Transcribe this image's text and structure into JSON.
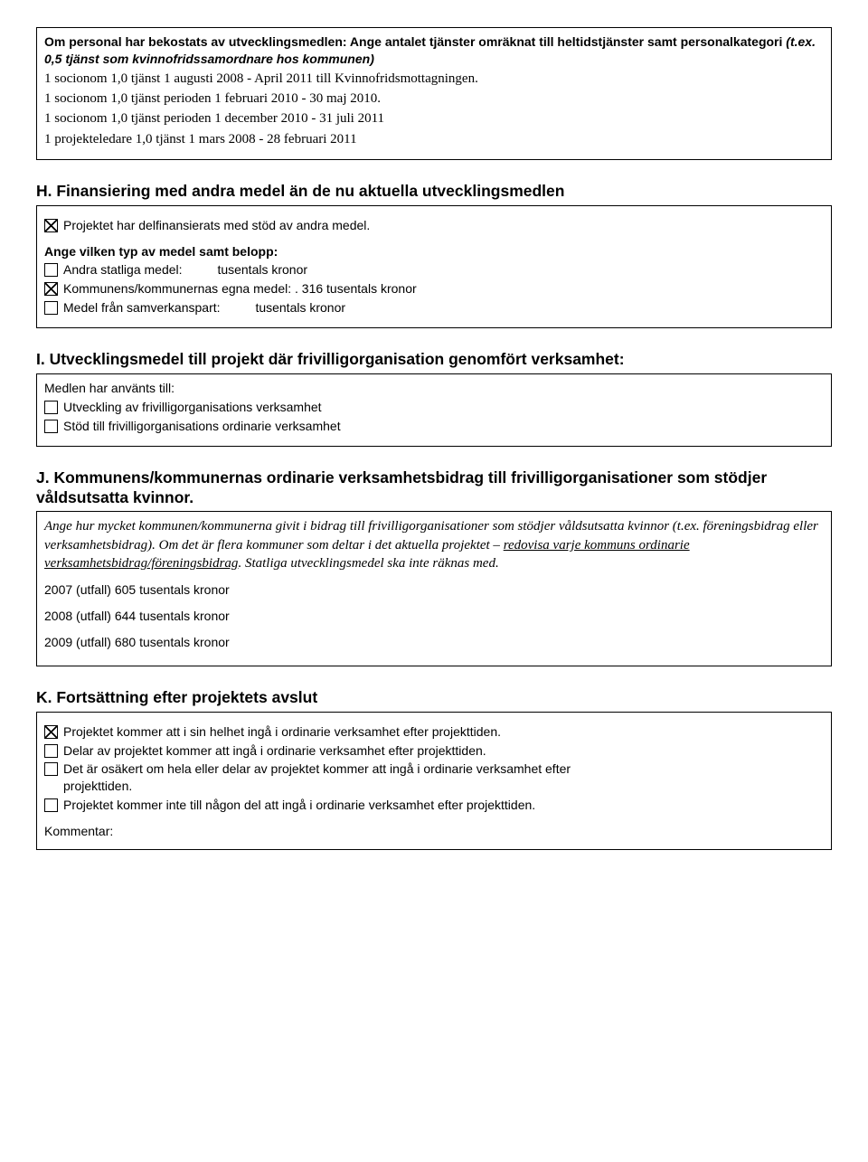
{
  "boxPersonal": {
    "intro_bold": "Om personal har bekostats av utvecklingsmedlen: Ange antalet tjänster omräknat till heltidstjänster samt personalkategori ",
    "intro_italic": "(t.ex. 0,5 tjänst som kvinnofridssamordnare hos kommunen)",
    "lines": [
      "1 socionom 1,0 tjänst 1 augusti 2008 - April 2011 till Kvinnofridsmottagningen.",
      "1 socionom 1,0 tjänst perioden 1 februari 2010 - 30 maj 2010.",
      "1 socionom 1,0 tjänst perioden 1 december 2010 - 31 juli 2011",
      "1 projekteledare 1,0 tjänst 1 mars 2008 - 28 februari 2011"
    ]
  },
  "sectionH": {
    "heading": "H. Finansiering med andra medel än de nu aktuella utvecklingsmedlen",
    "chk1_label": "Projektet har delfinansierats med stöd av andra medel.",
    "sub_heading": "Ange vilken typ av medel samt belopp:",
    "row1_label": "Andra statliga medel:",
    "row1_value": "tusentals kronor",
    "row2_label": "Kommunens/kommunernas egna medel: . 316 tusentals kronor",
    "row3_label": "Medel från samverkanspart:",
    "row3_value": "tusentals kronor"
  },
  "sectionI": {
    "heading": "I. Utvecklingsmedel till projekt där frivilligorganisation genomfört verksamhet:",
    "intro": "Medlen har använts till:",
    "opt1": "Utveckling av frivilligorganisations verksamhet",
    "opt2": "Stöd till frivilligorganisations ordinarie verksamhet"
  },
  "sectionJ": {
    "heading": "J. Kommunens/kommunernas ordinarie verksamhetsbidrag till frivilligorganisationer som stödjer våldsutsatta kvinnor.",
    "italic_part1": "Ange hur mycket kommunen/kommunerna givit i bidrag till frivilligorganisationer som stödjer våldsutsatta kvinnor (t.ex. föreningsbidrag eller verksamhetsbidrag). Om det är flera kommuner som deltar i det aktuella projektet – ",
    "italic_underline": "redovisa varje kommuns ordinarie verksamhetsbidrag/föreningsbidrag",
    "italic_part2": ". Statliga utvecklingsmedel ska inte räknas med.",
    "y2007": "2007 (utfall) 605 tusentals kronor",
    "y2008": "2008 (utfall) 644 tusentals kronor",
    "y2009": "2009 (utfall) 680 tusentals kronor"
  },
  "sectionK": {
    "heading": "K. Fortsättning efter projektets avslut",
    "opt1": "Projektet kommer att i sin helhet ingå i ordinarie verksamhet efter projekttiden.",
    "opt2": "Delar av projektet kommer att ingå i ordinarie verksamhet efter projekttiden.",
    "opt3a": "Det är osäkert om hela eller delar av projektet kommer att ingå i ordinarie verksamhet efter",
    "opt3b": "projekttiden.",
    "opt4": "Projektet kommer inte till någon del att ingå i ordinarie verksamhet efter projekttiden.",
    "comment_label": "Kommentar:"
  }
}
